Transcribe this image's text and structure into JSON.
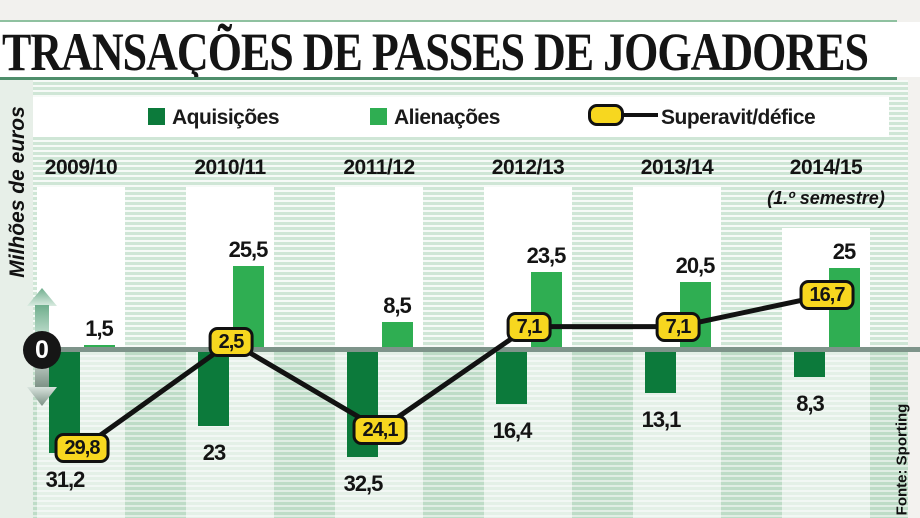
{
  "title": "TRANSAÇÕES DE PASSES DE JOGADORES",
  "y_axis_label": "Milhões de euros",
  "zero_label": "0",
  "source": "Fonte: Sporting",
  "legend": {
    "acquisitions": "Aquisições",
    "sales": "Alienações",
    "balance": "Superavit/défice"
  },
  "colors": {
    "acquisitions": "#0c7a3b",
    "sales": "#2fae52",
    "balance_pill": "#f7d71f",
    "line": "#121212",
    "zero_line": "#7e948a"
  },
  "chart_data": {
    "type": "bar+line",
    "title": "Transações de passes de jogadores",
    "ylabel": "Milhões de euros",
    "unit": "milhões de euros",
    "categories": [
      "2009/10",
      "2010/11",
      "2011/12",
      "2012/13",
      "2013/14",
      "2014/15"
    ],
    "category_note": {
      "index": 5,
      "text": "(1.º semestre)"
    },
    "series": [
      {
        "name": "Aquisições",
        "type": "bar",
        "direction": "down",
        "values": [
          31.2,
          23,
          32.5,
          16.4,
          13.1,
          8.3
        ],
        "labels": [
          "31,2",
          "23",
          "32,5",
          "16,4",
          "13,1",
          "8,3"
        ]
      },
      {
        "name": "Alienações",
        "type": "bar",
        "direction": "up",
        "values": [
          1.5,
          25.5,
          8.5,
          23.5,
          20.5,
          25
        ],
        "labels": [
          "1,5",
          "25,5",
          "8,5",
          "23,5",
          "20,5",
          "25"
        ]
      },
      {
        "name": "Superavit/défice",
        "type": "line",
        "marker": "yellow-pill",
        "values": [
          -29.8,
          2.5,
          -24.1,
          7.1,
          7.1,
          16.7
        ],
        "labels": [
          "29,8",
          "2,5",
          "24,1",
          "7,1",
          "7,1",
          "16,7"
        ]
      }
    ],
    "axis": {
      "zero_marker": "0",
      "grid": "striped-background",
      "legend_position": "top"
    }
  }
}
